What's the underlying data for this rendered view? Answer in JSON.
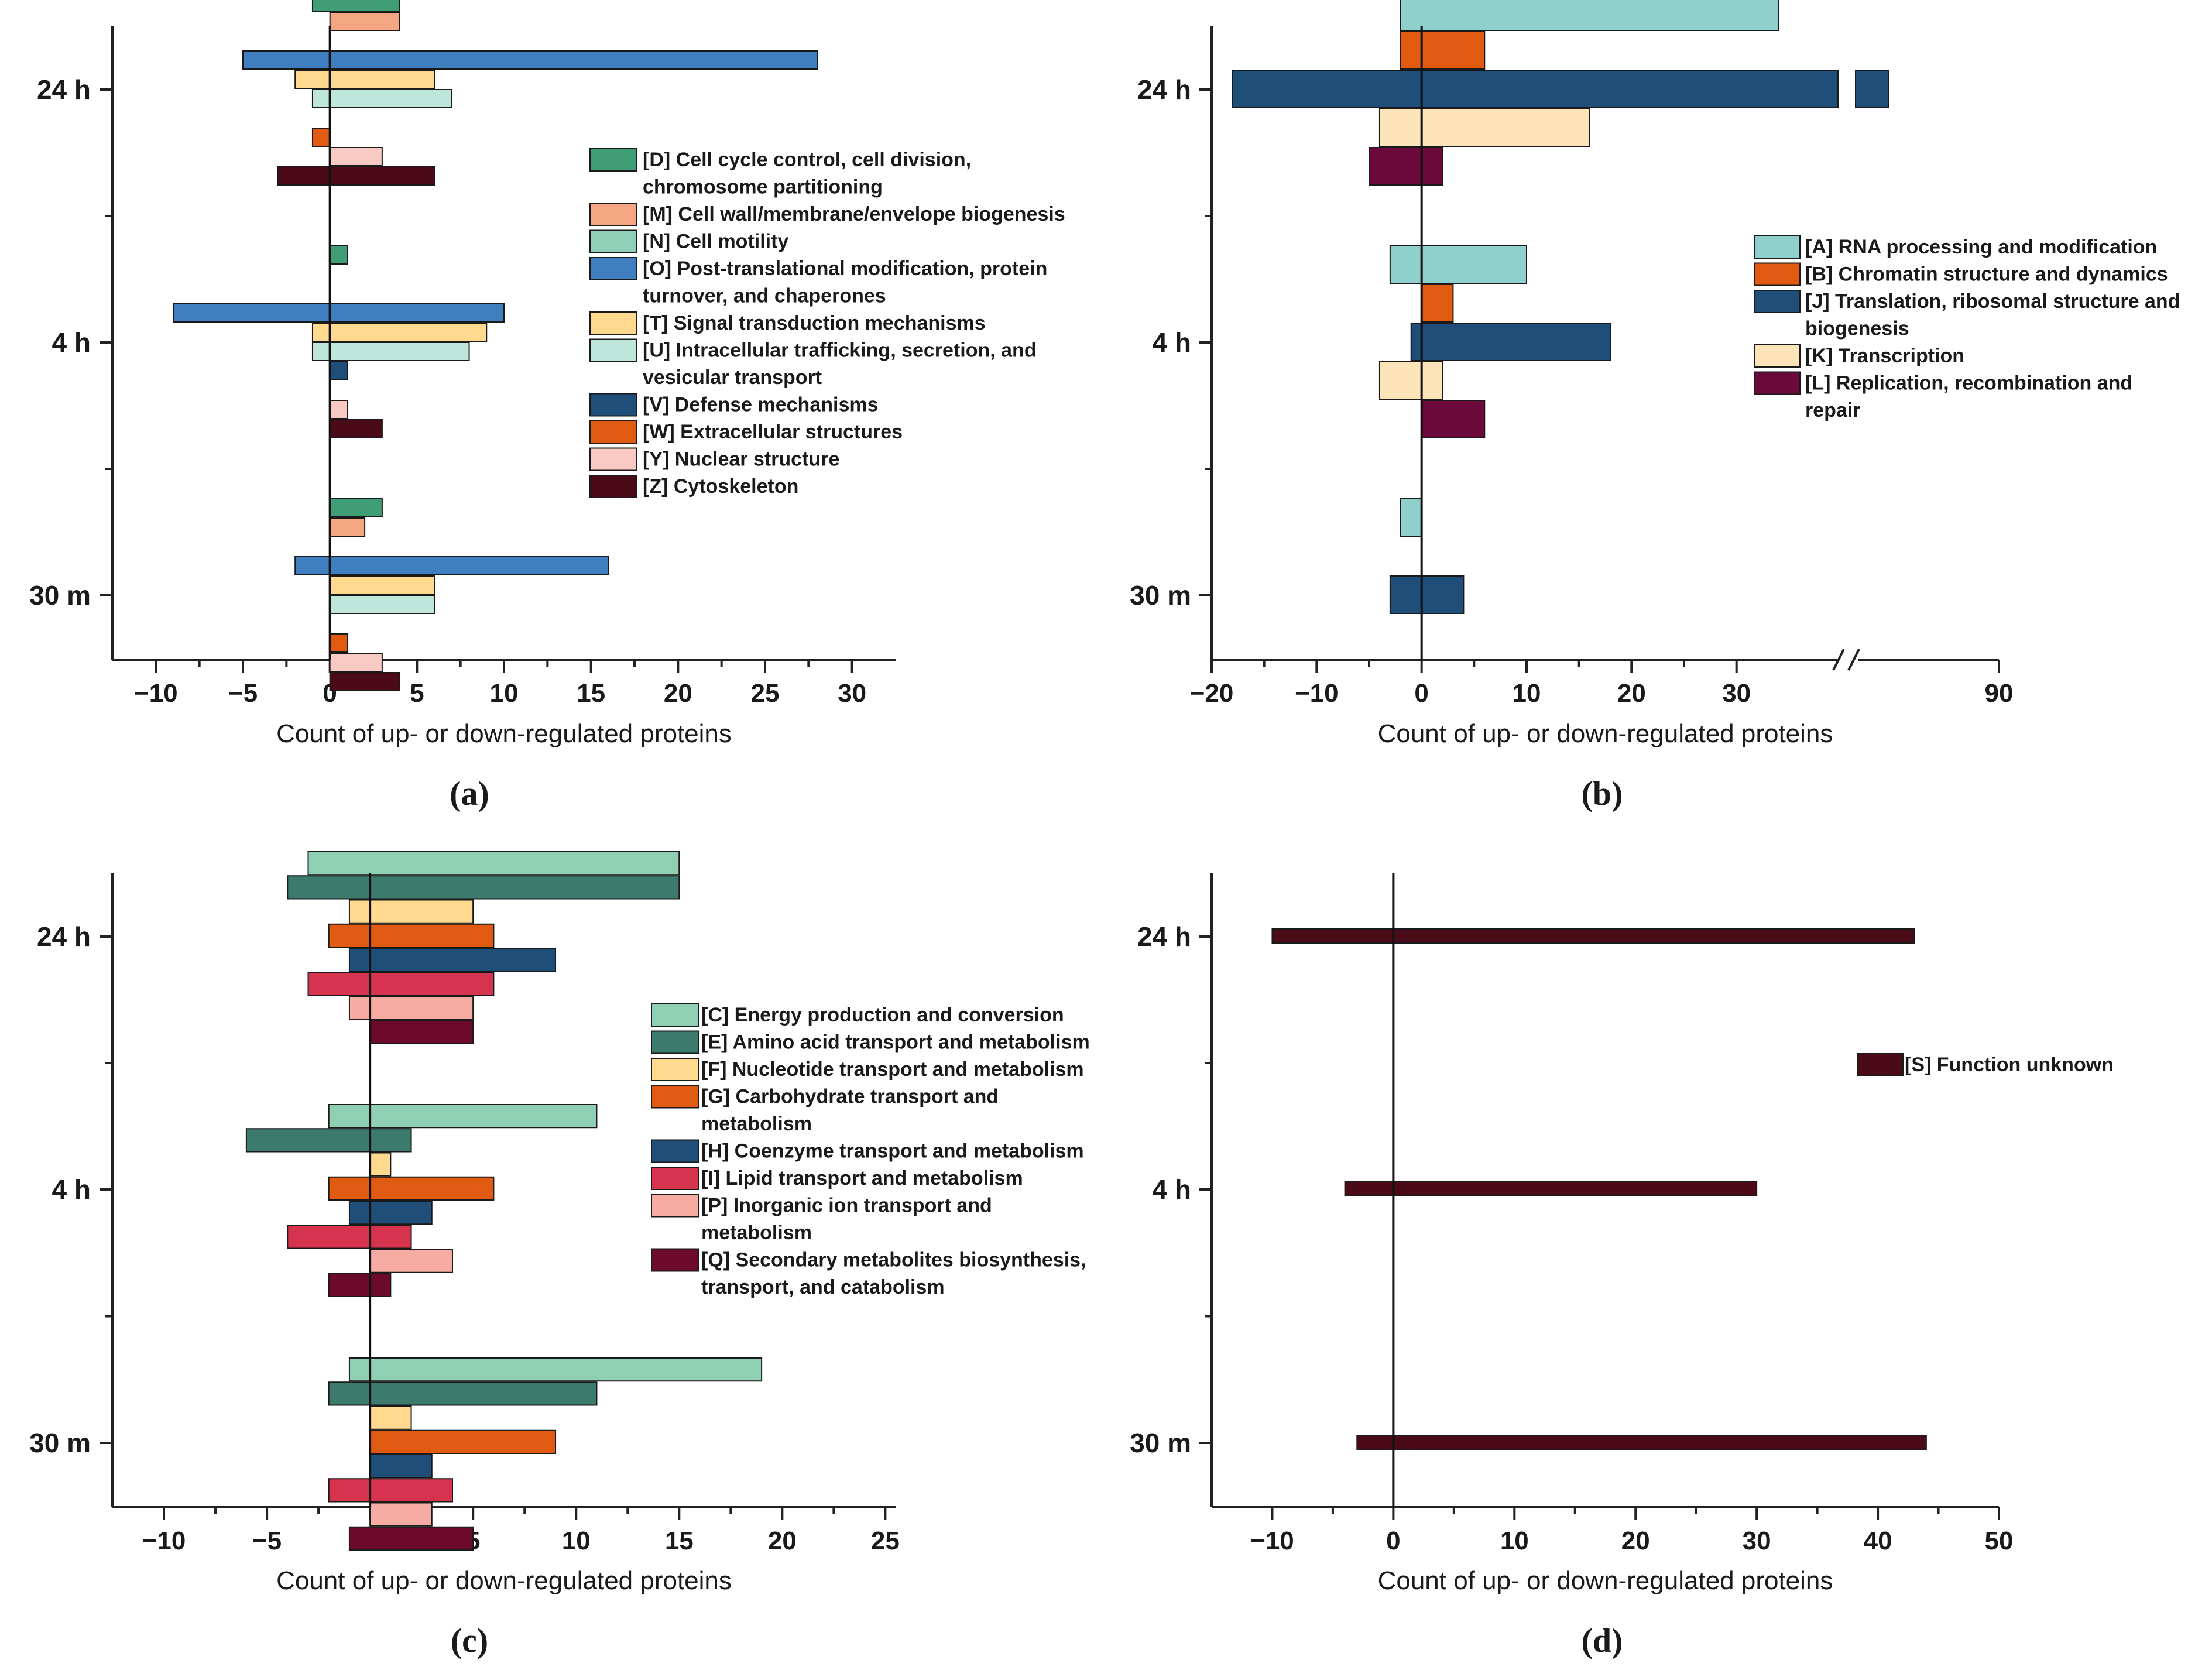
{
  "chart_data": [
    {
      "panel": "(a)",
      "type": "bar",
      "orientation": "horizontal",
      "categories": [
        "24 h",
        "4 h",
        "30 m"
      ],
      "xlabel": "Count of up- or down-regulated proteins",
      "xlim": [
        -12.5,
        32.5
      ],
      "xticks": [
        -10,
        -5,
        0,
        5,
        10,
        15,
        20,
        25,
        30
      ],
      "xtick_labels": [
        "−10",
        "−5",
        "0",
        "5",
        "10",
        "15",
        "20",
        "25",
        "30"
      ],
      "series": [
        {
          "name": "[D] Cell cycle control, cell division, chromosome partitioning",
          "color": "#3f9e76",
          "down": [
            -1,
            0,
            0
          ],
          "up": [
            4,
            1,
            3
          ]
        },
        {
          "name": "[M] Cell wall/membrane/envelope biogenesis",
          "color": "#f4a582",
          "down": [
            0,
            0,
            0
          ],
          "up": [
            4,
            0,
            2
          ]
        },
        {
          "name": "[N] Cell motility",
          "color": "#8fcfb8",
          "down": [
            0,
            0,
            0
          ],
          "up": [
            0,
            0,
            0
          ]
        },
        {
          "name": "[O] Post-translational modification, protein turnover, and chaperones",
          "color": "#3f7fc0",
          "down": [
            -5,
            -9,
            -2
          ],
          "up": [
            28,
            10,
            16
          ]
        },
        {
          "name": "[T] Signal transduction mechanisms",
          "color": "#ffd98e",
          "down": [
            -2,
            -1,
            0
          ],
          "up": [
            6,
            9,
            6
          ]
        },
        {
          "name": "[U] Intracellular trafficking, secretion, and vesicular transport",
          "color": "#bfe6da",
          "down": [
            -1,
            -1,
            0
          ],
          "up": [
            7,
            8,
            6
          ]
        },
        {
          "name": "[V] Defense mechanisms",
          "color": "#1f4e79",
          "down": [
            0,
            0,
            0
          ],
          "up": [
            0,
            1,
            0
          ]
        },
        {
          "name": "[W] Extracellular structures",
          "color": "#e05a12",
          "down": [
            -1,
            0,
            0
          ],
          "up": [
            0,
            0,
            1
          ]
        },
        {
          "name": "[Y] Nuclear structure",
          "color": "#f9c9c4",
          "down": [
            0,
            0,
            0
          ],
          "up": [
            3,
            1,
            3
          ]
        },
        {
          "name": "[Z] Cytoskeleton",
          "color": "#4a0a18",
          "down": [
            -3,
            0,
            0
          ],
          "up": [
            6,
            3,
            4
          ]
        }
      ]
    },
    {
      "panel": "(b)",
      "type": "bar",
      "orientation": "horizontal",
      "categories": [
        "24 h",
        "4 h",
        "30 m"
      ],
      "xlabel": "Count of up- or down-regulated proteins",
      "axis_break": [
        40,
        80
      ],
      "xlim": [
        -20,
        90
      ],
      "xticks": [
        -20,
        -10,
        0,
        10,
        20,
        30,
        90
      ],
      "xtick_labels": [
        "−20",
        "−10",
        "0",
        "10",
        "20",
        "30",
        "90"
      ],
      "series": [
        {
          "name": "[A] RNA processing and modification",
          "color": "#8fd0cc",
          "down": [
            -2,
            -3,
            -2
          ],
          "up": [
            34,
            10,
            0
          ]
        },
        {
          "name": "[B] Chromatin structure and dynamics",
          "color": "#e05a12",
          "down": [
            -2,
            0,
            0
          ],
          "up": [
            6,
            3,
            0
          ]
        },
        {
          "name": "[J] Translation, ribosomal structure and biogenesis",
          "color": "#1f4e79",
          "down": [
            -18,
            -1,
            -3
          ],
          "up": [
            83,
            18,
            4
          ]
        },
        {
          "name": "[K] Transcription",
          "color": "#fde3b8",
          "down": [
            -4,
            -4,
            0
          ],
          "up": [
            16,
            2,
            0
          ]
        },
        {
          "name": "[L] Replication, recombination and repair",
          "color": "#6b0a3a",
          "down": [
            -5,
            0,
            0
          ],
          "up": [
            2,
            6,
            0
          ]
        }
      ]
    },
    {
      "panel": "(c)",
      "type": "bar",
      "orientation": "horizontal",
      "categories": [
        "24 h",
        "4 h",
        "30 m"
      ],
      "xlabel": "Count of up- or down-regulated proteins",
      "xlim": [
        -12.5,
        25.5
      ],
      "xticks": [
        -10,
        -5,
        0,
        5,
        10,
        15,
        20,
        25
      ],
      "xtick_labels": [
        "−10",
        "−5",
        "0",
        "5",
        "10",
        "15",
        "20",
        "25"
      ],
      "series": [
        {
          "name": "[C] Energy production and conversion",
          "color": "#8fd0b4",
          "down": [
            -3,
            -2,
            -1
          ],
          "up": [
            15,
            11,
            19
          ]
        },
        {
          "name": "[E] Amino acid transport and metabolism",
          "color": "#3c7a6e",
          "down": [
            -4,
            -6,
            -2
          ],
          "up": [
            15,
            2,
            11
          ]
        },
        {
          "name": "[F] Nucleotide transport and metabolism",
          "color": "#ffd98e",
          "down": [
            -1,
            0,
            0
          ],
          "up": [
            5,
            1,
            2
          ]
        },
        {
          "name": "[G] Carbohydrate transport and metabolism",
          "color": "#e05a12",
          "down": [
            -2,
            -2,
            0
          ],
          "up": [
            6,
            6,
            9
          ]
        },
        {
          "name": "[H] Coenzyme transport and metabolism",
          "color": "#1f4e79",
          "down": [
            -1,
            -1,
            0
          ],
          "up": [
            9,
            3,
            3
          ]
        },
        {
          "name": "[I] Lipid transport and metabolism",
          "color": "#d6334f",
          "down": [
            -3,
            -4,
            -2
          ],
          "up": [
            6,
            2,
            4
          ]
        },
        {
          "name": "[P] Inorganic ion transport and metabolism",
          "color": "#f6aca2",
          "down": [
            -1,
            0,
            0
          ],
          "up": [
            5,
            4,
            3
          ]
        },
        {
          "name": "[Q] Secondary metabolites biosynthesis, transport, and catabolism",
          "color": "#6b0a2a",
          "down": [
            0,
            -2,
            -1
          ],
          "up": [
            5,
            1,
            5
          ]
        }
      ]
    },
    {
      "panel": "(d)",
      "type": "bar",
      "orientation": "horizontal",
      "categories": [
        "24 h",
        "4 h",
        "30 m"
      ],
      "xlabel": "Count of up- or down-regulated proteins",
      "xlim": [
        -15,
        50
      ],
      "xticks": [
        -10,
        0,
        10,
        20,
        30,
        40,
        50
      ],
      "xtick_labels": [
        "−10",
        "0",
        "10",
        "20",
        "30",
        "40",
        "50"
      ],
      "series": [
        {
          "name": "[S] Function unknown",
          "color": "#4a0a18",
          "down": [
            -10,
            -4,
            -3
          ],
          "up": [
            43,
            30,
            44
          ]
        }
      ]
    }
  ]
}
